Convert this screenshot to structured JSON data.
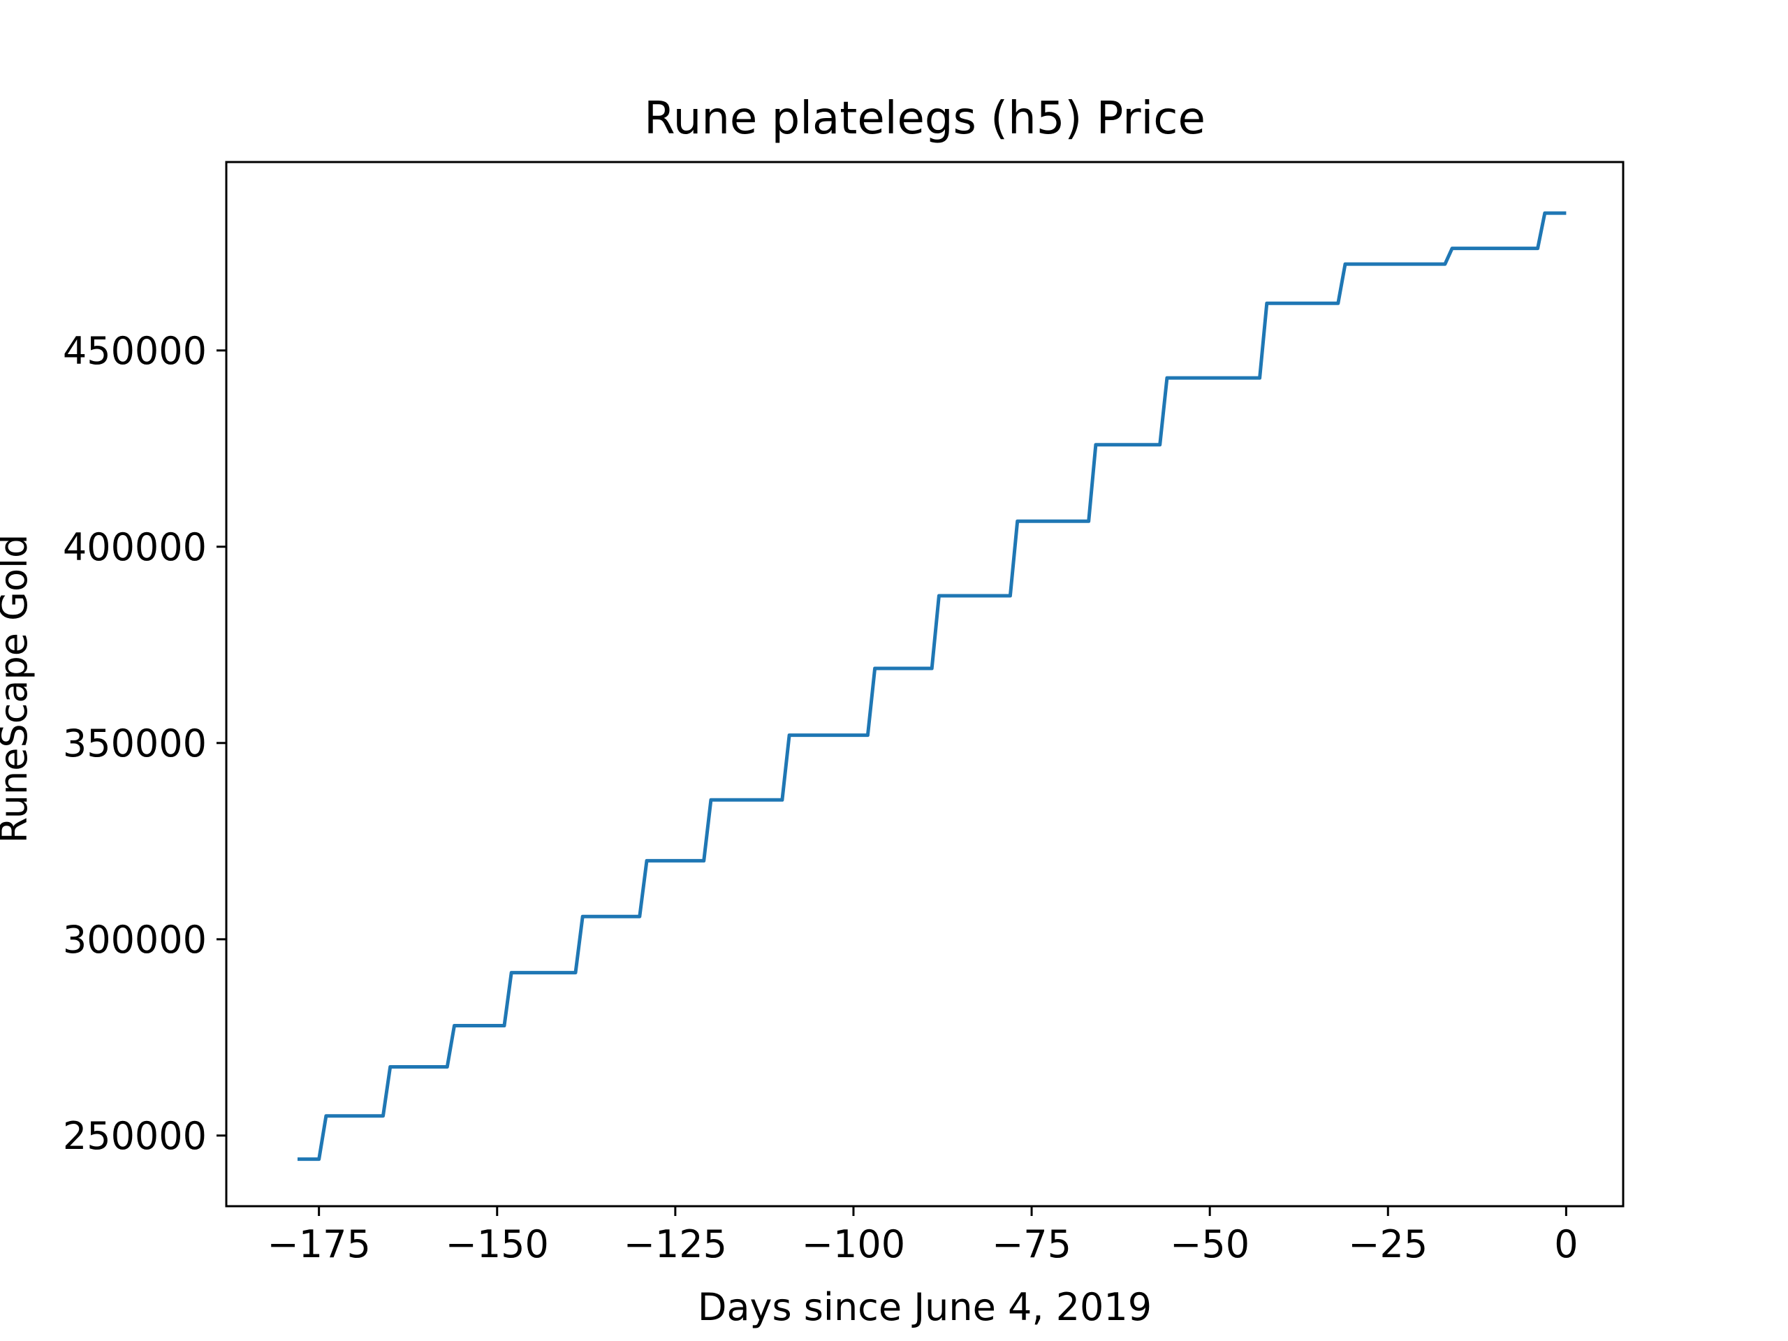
{
  "chart_data": {
    "type": "line",
    "title": "Rune platelegs (h5) Price",
    "xlabel": "Days since June 4, 2019",
    "ylabel": "RuneScape Gold",
    "xlim": [
      -188,
      8
    ],
    "ylim": [
      232000,
      498000
    ],
    "xticks": [
      -175,
      -150,
      -125,
      -100,
      -75,
      -50,
      -25,
      0
    ],
    "xtick_labels": [
      "−175",
      "−150",
      "−125",
      "−100",
      "−75",
      "−50",
      "−25",
      "0"
    ],
    "yticks": [
      250000,
      300000,
      350000,
      400000,
      450000
    ],
    "ytick_labels": [
      "250000",
      "300000",
      "350000",
      "400000",
      "450000"
    ],
    "grid": false,
    "series": [
      {
        "name": "",
        "color": "#1f77b4",
        "points": [
          [
            -178,
            244000
          ],
          [
            -175,
            244000
          ],
          [
            -174,
            255000
          ],
          [
            -166,
            255000
          ],
          [
            -165,
            267500
          ],
          [
            -157,
            267500
          ],
          [
            -156,
            278000
          ],
          [
            -149,
            278000
          ],
          [
            -148,
            291500
          ],
          [
            -139,
            291500
          ],
          [
            -138,
            305800
          ],
          [
            -130,
            305800
          ],
          [
            -129,
            320000
          ],
          [
            -121,
            320000
          ],
          [
            -120,
            335500
          ],
          [
            -110,
            335500
          ],
          [
            -109,
            352000
          ],
          [
            -98,
            352000
          ],
          [
            -97,
            369000
          ],
          [
            -89,
            369000
          ],
          [
            -88,
            387500
          ],
          [
            -78,
            387500
          ],
          [
            -77,
            406500
          ],
          [
            -67,
            406500
          ],
          [
            -66,
            426000
          ],
          [
            -57,
            426000
          ],
          [
            -56,
            443000
          ],
          [
            -43,
            443000
          ],
          [
            -42,
            462000
          ],
          [
            -32,
            462000
          ],
          [
            -31,
            472000
          ],
          [
            -17,
            472000
          ],
          [
            -16,
            476000
          ],
          [
            -4,
            476000
          ],
          [
            -3,
            485000
          ],
          [
            0,
            485000
          ]
        ]
      }
    ]
  }
}
